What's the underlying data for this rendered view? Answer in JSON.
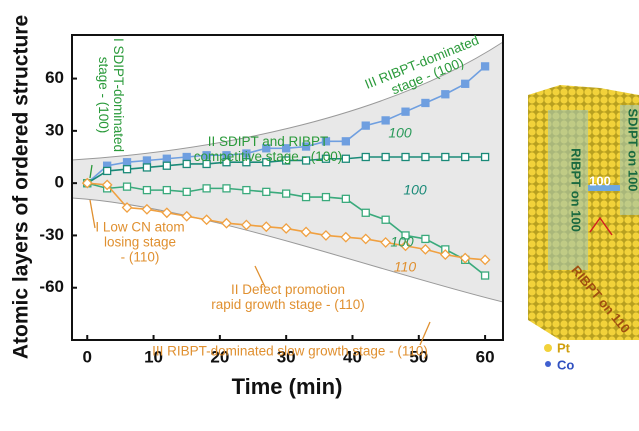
{
  "chart_data": {
    "type": "line",
    "x_label": "Time (min)",
    "y_label": "Atomic layers of ordered structure",
    "x": [
      0,
      3,
      6,
      9,
      12,
      15,
      18,
      21,
      24,
      27,
      30,
      33,
      36,
      39,
      42,
      45,
      48,
      51,
      54,
      57,
      60
    ],
    "series": [
      {
        "name": "100",
        "color": "#6f9fe0",
        "marker": "square",
        "label_color": "#2a9a5a",
        "values": [
          0,
          10,
          12,
          13,
          14,
          15,
          16,
          16,
          17,
          20,
          20,
          21,
          24,
          24,
          33,
          36,
          41,
          46,
          51,
          57,
          67
        ]
      },
      {
        "name": "100",
        "color": "#1a8a78",
        "marker": "open-square",
        "label_color": "#1a8a78",
        "values": [
          0,
          7,
          8,
          9,
          10,
          11,
          11,
          12,
          12,
          12,
          13,
          13,
          14,
          14,
          15,
          15,
          15,
          15,
          15,
          15,
          15
        ]
      },
      {
        "name": "100",
        "color": "#3aaa7c",
        "marker": "open-square",
        "label_color": "#2a9a5a",
        "values": [
          0,
          -3,
          -2,
          -4,
          -4,
          -5,
          -3,
          -3,
          -4,
          -5,
          -6,
          -8,
          -8,
          -9,
          -17,
          -21,
          -30,
          -32,
          -38,
          -44,
          -53
        ]
      },
      {
        "name": "110",
        "color": "#f0a040",
        "marker": "diamond",
        "label_color": "#e09030",
        "values": [
          0,
          -1,
          -14,
          -15,
          -17,
          -19,
          -21,
          -23,
          -24,
          -25,
          -26,
          -28,
          -30,
          -31,
          -32,
          -34,
          -36,
          -38,
          -41,
          -43,
          -44
        ]
      }
    ],
    "xlim": [
      -2.3,
      62.7
    ],
    "xticks": [
      0,
      10,
      20,
      30,
      40,
      50,
      60
    ],
    "ylim": [
      -90,
      85
    ],
    "yticks": [
      -60,
      -30,
      0,
      30,
      60
    ],
    "grid": false,
    "annotations": [
      {
        "lines": [
          "I SDIPT-dominated",
          "stage - (100)"
        ],
        "color": "#2a9a3a"
      },
      {
        "lines": [
          "II SDIPT and RIBPT",
          "competitive stage - (100)"
        ],
        "color": "#2a9a3a"
      },
      {
        "lines": [
          "III RIBPT-dominated",
          "stage - (100)"
        ],
        "color": "#2a9a3a"
      },
      {
        "lines": [
          "I Low CN atom",
          "losing  stage",
          "- (110)"
        ],
        "color": "#e09030"
      },
      {
        "lines": [
          "II Defect promotion",
          "rapid growth stage - (110)"
        ],
        "color": "#e09030"
      },
      {
        "lines": [
          "III RIBPT-dominated slow growth stage - (110)"
        ],
        "color": "#e09030"
      }
    ]
  },
  "inset": {
    "labels": [
      "RIBPT on 100",
      "100",
      "SDIPT on 100",
      "RIBPT on 110"
    ],
    "legend": [
      "Pt",
      "Co"
    ]
  }
}
